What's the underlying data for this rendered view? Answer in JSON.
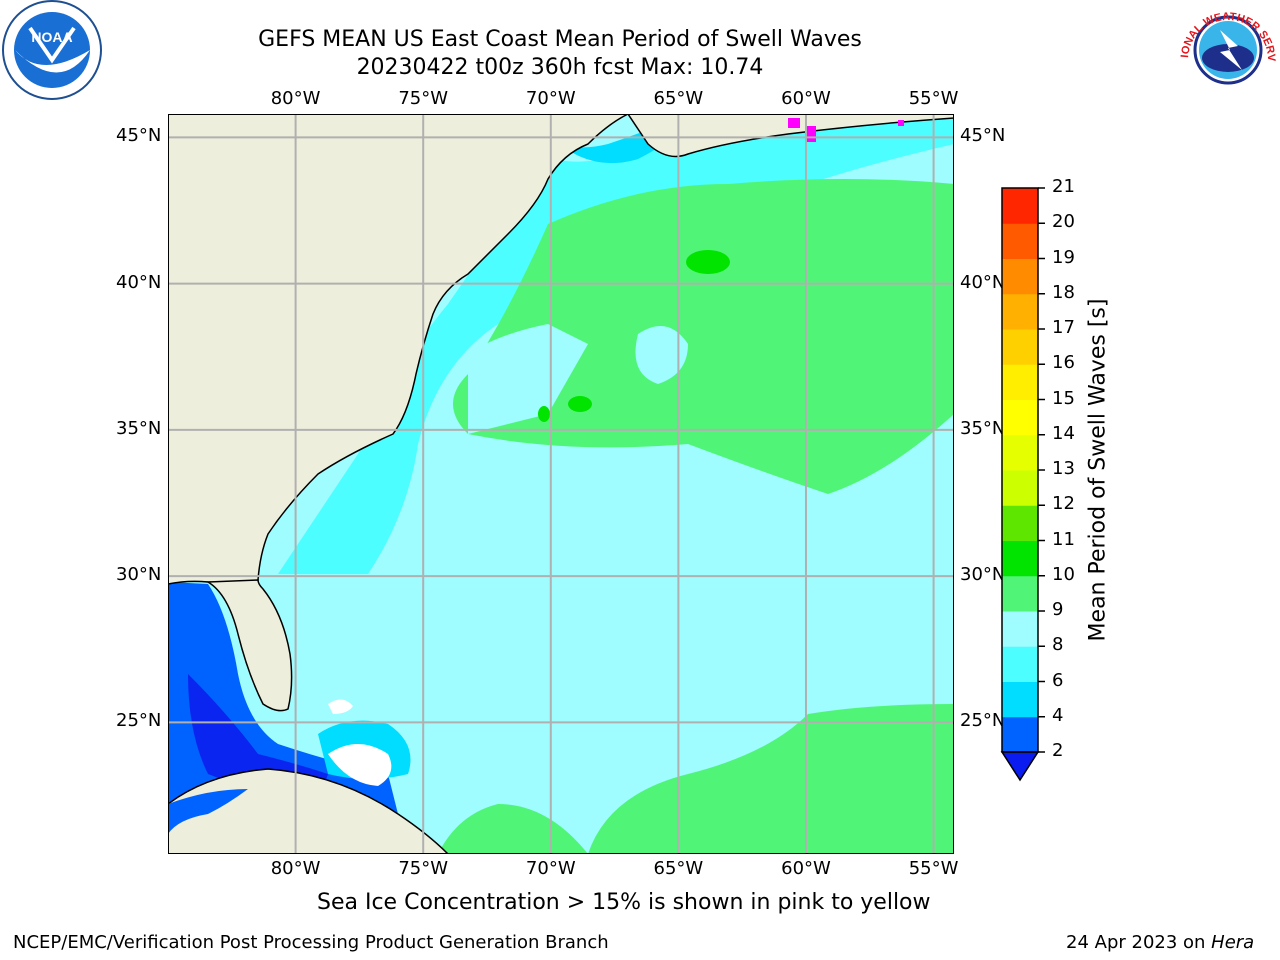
{
  "title": {
    "line1": "GEFS MEAN US East Coast Mean Period of Swell Waves",
    "line2": "20230422 t00z 360h fcst   Max: 10.74"
  },
  "logos": {
    "left": {
      "name": "noaa-logo",
      "text": "NOAA"
    },
    "right": {
      "name": "nws-logo",
      "text": "NATIONAL WEATHER SERVICE"
    }
  },
  "map": {
    "lon_ticks": [
      "80°W",
      "75°W",
      "70°W",
      "65°W",
      "60°W",
      "55°W"
    ],
    "lat_ticks": [
      "45°N",
      "40°N",
      "35°N",
      "30°N",
      "25°N"
    ],
    "lon_values": [
      -80,
      -75,
      -70,
      -65,
      -60,
      -55
    ],
    "lat_values": [
      45,
      40,
      35,
      30,
      25
    ],
    "extent": {
      "lon": [
        -85,
        -54.2
      ],
      "lat": [
        20.5,
        45.8
      ]
    },
    "land_color": "#eeeedd",
    "dominant_fields": [
      {
        "range": "8-9 s",
        "color": "#9ffcff",
        "where": "most of open ocean"
      },
      {
        "range": "9-10 s",
        "color": "#50f577",
        "where": "Gulf Stream region and southeast"
      },
      {
        "range": "6-8 s",
        "color": "#4cfeff",
        "where": "near coasts"
      },
      {
        "range": "2-4 s",
        "color": "#0a25f0",
        "where": "Gulf of Mexico / Florida Straits"
      }
    ]
  },
  "colorbar": {
    "title": "Mean Period of Swell Waves [s]",
    "levels": [
      "2",
      "4",
      "6",
      "8",
      "9",
      "10",
      "11",
      "12",
      "13",
      "14",
      "15",
      "16",
      "17",
      "18",
      "19",
      "20",
      "21"
    ],
    "colors": [
      "#0063ff",
      "#00ddff",
      "#4cfeff",
      "#9ffcff",
      "#50f577",
      "#00e400",
      "#5fe600",
      "#ccff00",
      "#e6ff00",
      "#ffff00",
      "#ffee00",
      "#ffd000",
      "#ffb000",
      "#ff8c00",
      "#ff5a00",
      "#ff2600",
      "#ff0000"
    ],
    "under_color": "#0a1cf0"
  },
  "caption": "Sea Ice Concentration > 15% is shown in pink to yellow",
  "footer": {
    "left": "NCEP/EMC/Verification Post Processing Product Generation Branch",
    "right_prefix": "24 Apr 2023 on ",
    "right_machine": "Hera"
  }
}
